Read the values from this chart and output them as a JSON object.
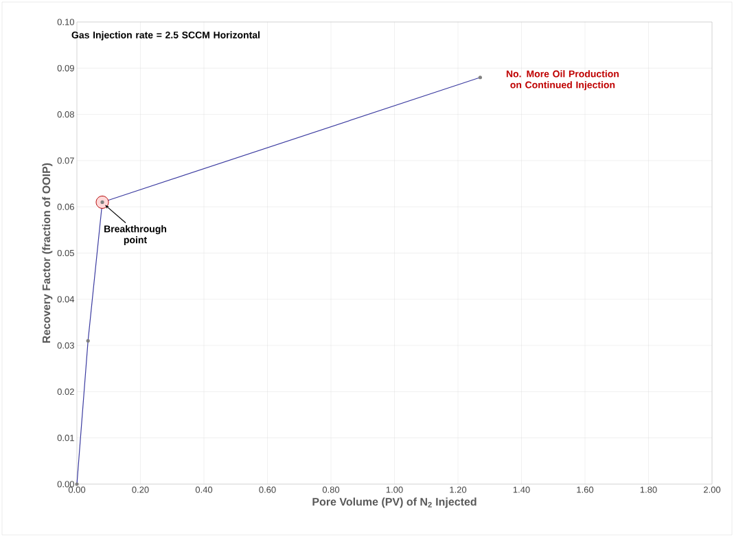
{
  "chart_data": {
    "type": "line",
    "xlabel": "Pore Volume (PV) of N$_{2}$ Injected",
    "ylabel": "Recovery Factor (fraction of OOIP)",
    "x": [
      0,
      0.035,
      0.08,
      1.27
    ],
    "series": [
      {
        "color": "#3b3ba0",
        "values": [
          0,
          0.031,
          0.061,
          0.088
        ]
      }
    ],
    "xlim": [
      0,
      2
    ],
    "ylim": [
      0,
      0.1
    ],
    "xticks": [
      {
        "value": 0,
        "label": "0.00"
      },
      {
        "value": 0.2,
        "label": "0.20"
      },
      {
        "value": 0.4,
        "label": "0.40"
      },
      {
        "value": 0.6,
        "label": "0.60"
      },
      {
        "value": 0.8,
        "label": "0.80"
      },
      {
        "value": 1.0,
        "label": "1.00"
      },
      {
        "value": 1.2,
        "label": "1.20"
      },
      {
        "value": 1.4,
        "label": "1.40"
      },
      {
        "value": 1.6,
        "label": "1.60"
      },
      {
        "value": 1.8,
        "label": "1.80"
      },
      {
        "value": 2.0,
        "label": "2.00"
      }
    ],
    "yticks": [
      {
        "value": 0,
        "label": "0.00"
      },
      {
        "value": 0.01,
        "label": "0.01"
      },
      {
        "value": 0.02,
        "label": "0.02"
      },
      {
        "value": 0.03,
        "label": "0.03"
      },
      {
        "value": 0.04,
        "label": "0.04"
      },
      {
        "value": 0.05,
        "label": "0.05"
      },
      {
        "value": 0.06,
        "label": "0.06"
      },
      {
        "value": 0.07,
        "label": "0.07"
      },
      {
        "value": 0.08,
        "label": "0.08"
      },
      {
        "value": 0.09,
        "label": "0.09"
      },
      {
        "value": 0.1,
        "label": "0.10"
      }
    ],
    "annotations": [
      "Gas Injection rate = 2.5 SCCM Horizontal",
      {
        "text": "Breakthrough point",
        "x": 0.08,
        "y": 0.061
      },
      {
        "text": "No. More Oil Production on Continued Injection",
        "x": 1.27,
        "y": 0.088
      }
    ],
    "grid": true,
    "marker": "circle",
    "line_style": "solid"
  }
}
